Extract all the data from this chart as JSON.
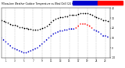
{
  "title": "Milwaukee Weather Outdoor Temperature vs Wind Chill (24 Hours)",
  "title_fontsize": 2.2,
  "bg_color": "#ffffff",
  "plot_bg": "#ffffff",
  "xlim": [
    0,
    24
  ],
  "ylim": [
    -10,
    40
  ],
  "yticks": [
    -10,
    0,
    10,
    20,
    30,
    40
  ],
  "ytick_labels": [
    "-10",
    "0",
    "10",
    "20",
    "30",
    "40"
  ],
  "xticks": [
    1,
    3,
    5,
    7,
    9,
    11,
    13,
    15,
    17,
    19,
    21,
    23
  ],
  "xtick_labels": [
    "1",
    "3",
    "5",
    "7",
    "9",
    "11",
    "13",
    "15",
    "17",
    "19",
    "21",
    "23"
  ],
  "grid_color": "#bbbbbb",
  "temp_color": "#000000",
  "wind_chill_high_color": "#ff0000",
  "wind_chill_low_color": "#0000cc",
  "legend_blue": "#0000cc",
  "legend_red": "#ff0000",
  "temp_x": [
    0,
    0.5,
    1,
    1.5,
    2,
    2.5,
    3,
    3.5,
    4,
    4.5,
    5,
    5.5,
    6,
    6.5,
    7,
    7.5,
    8,
    8.5,
    9,
    9.5,
    10,
    10.5,
    11,
    11.5,
    12,
    12.5,
    13,
    13.5,
    14,
    14.5,
    15,
    15.5,
    16,
    16.5,
    17,
    17.5,
    18,
    18.5,
    19,
    19.5,
    20,
    20.5,
    21,
    21.5,
    22,
    22.5,
    23,
    23.5
  ],
  "temp_y": [
    28,
    27,
    26,
    25,
    24,
    23,
    23,
    22,
    21,
    21,
    20,
    20,
    19,
    19,
    18,
    18,
    18,
    19,
    20,
    21,
    22,
    24,
    26,
    28,
    29,
    30,
    31,
    31,
    32,
    32,
    33,
    33,
    33,
    33,
    34,
    35,
    35,
    35,
    35,
    34,
    33,
    32,
    31,
    30,
    29,
    28,
    28,
    27
  ],
  "wc_x": [
    0,
    0.5,
    1,
    1.5,
    2,
    2.5,
    3,
    3.5,
    4,
    4.5,
    5,
    5.5,
    6,
    6.5,
    7,
    7.5,
    8,
    8.5,
    9,
    9.5,
    10,
    10.5,
    11,
    11.5,
    12,
    12.5,
    13,
    13.5,
    14,
    14.5,
    15,
    15.5,
    16,
    16.5,
    17,
    17.5,
    18,
    18.5,
    19,
    19.5,
    20,
    20.5,
    21,
    21.5,
    22,
    22.5,
    23,
    23.5
  ],
  "wc_y": [
    10,
    8,
    6,
    4,
    2,
    0,
    -1,
    -2,
    -3,
    -4,
    -5,
    -5,
    -4,
    -3,
    -2,
    -1,
    0,
    2,
    4,
    6,
    8,
    10,
    12,
    14,
    15,
    16,
    17,
    17,
    18,
    18,
    19,
    19,
    19,
    20,
    22,
    24,
    24,
    24,
    23,
    22,
    20,
    18,
    17,
    16,
    14,
    12,
    12,
    11
  ],
  "wc_threshold": 20,
  "dot_size": 1.5
}
